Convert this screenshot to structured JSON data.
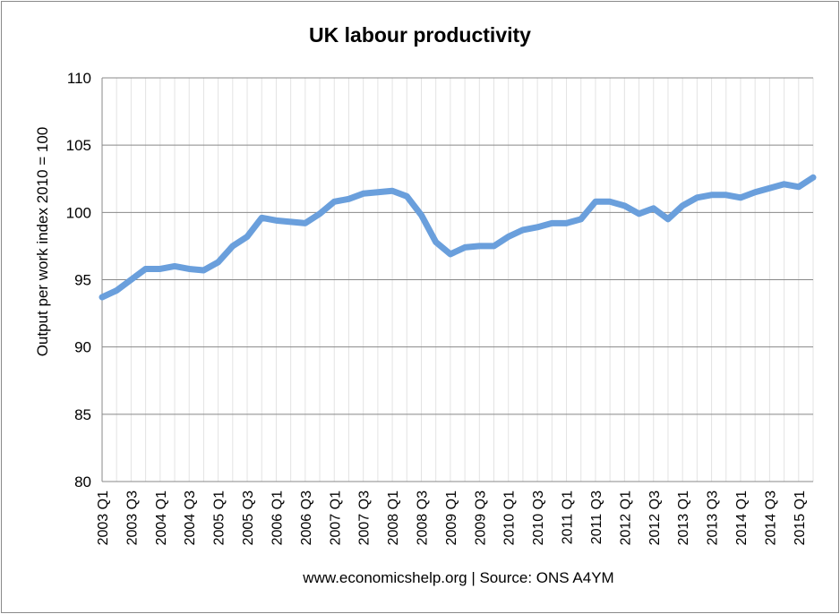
{
  "chart_data": {
    "type": "line",
    "title": "UK labour productivity",
    "xlabel": "",
    "ylabel": "Output per work index 2010 = 100",
    "footer": "www.economicshelp.org | Source: ONS A4YM",
    "ylim": [
      80,
      110
    ],
    "yticks": [
      80,
      85,
      90,
      95,
      100,
      105,
      110
    ],
    "grid": true,
    "legend": "none",
    "colors": {
      "series": "#6a9fdc",
      "grid": "#888888",
      "minor_grid": "#e3e3e3",
      "frame": "#8a8a8a"
    },
    "x": [
      "2003 Q1",
      "2003 Q2",
      "2003 Q3",
      "2003 Q4",
      "2004 Q1",
      "2004 Q2",
      "2004 Q3",
      "2004 Q4",
      "2005 Q1",
      "2005 Q2",
      "2005 Q3",
      "2005 Q4",
      "2006 Q1",
      "2006 Q2",
      "2006 Q3",
      "2006 Q4",
      "2007 Q1",
      "2007 Q2",
      "2007 Q3",
      "2007 Q4",
      "2008 Q1",
      "2008 Q2",
      "2008 Q3",
      "2008 Q4",
      "2009 Q1",
      "2009 Q2",
      "2009 Q3",
      "2009 Q4",
      "2010 Q1",
      "2010 Q2",
      "2010 Q3",
      "2010 Q4",
      "2011 Q1",
      "2011 Q2",
      "2011 Q3",
      "2011 Q4",
      "2012 Q1",
      "2012 Q2",
      "2012 Q3",
      "2012 Q4",
      "2013 Q1",
      "2013 Q2",
      "2013 Q3",
      "2013 Q4",
      "2014 Q1",
      "2014 Q2",
      "2014 Q3",
      "2014 Q4",
      "2015 Q1",
      "2015 Q2"
    ],
    "xtick_labels": [
      "2003 Q1",
      "2003 Q3",
      "2004 Q1",
      "2004 Q3",
      "2005 Q1",
      "2005 Q3",
      "2006 Q1",
      "2006 Q3",
      "2007 Q1",
      "2007 Q3",
      "2008 Q1",
      "2008 Q3",
      "2009 Q1",
      "2009 Q3",
      "2010 Q1",
      "2010 Q3",
      "2011 Q1",
      "2011 Q3",
      "2012 Q1",
      "2012 Q3",
      "2013 Q1",
      "2013 Q3",
      "2014 Q1",
      "2014 Q3",
      "2015 Q1"
    ],
    "series": [
      {
        "values": [
          93.7,
          94.2,
          95.0,
          95.8,
          95.8,
          96.0,
          95.8,
          95.7,
          96.3,
          97.5,
          98.2,
          99.6,
          99.4,
          99.3,
          99.2,
          99.9,
          100.8,
          101.0,
          101.4,
          101.5,
          101.6,
          101.2,
          99.8,
          97.8,
          96.9,
          97.4,
          97.5,
          97.5,
          98.2,
          98.7,
          98.9,
          99.2,
          99.2,
          99.5,
          100.8,
          100.8,
          100.5,
          99.9,
          100.3,
          99.5,
          100.5,
          101.1,
          101.3,
          101.3,
          101.1,
          101.5,
          101.8,
          102.1,
          101.9,
          102.6
        ]
      }
    ]
  }
}
